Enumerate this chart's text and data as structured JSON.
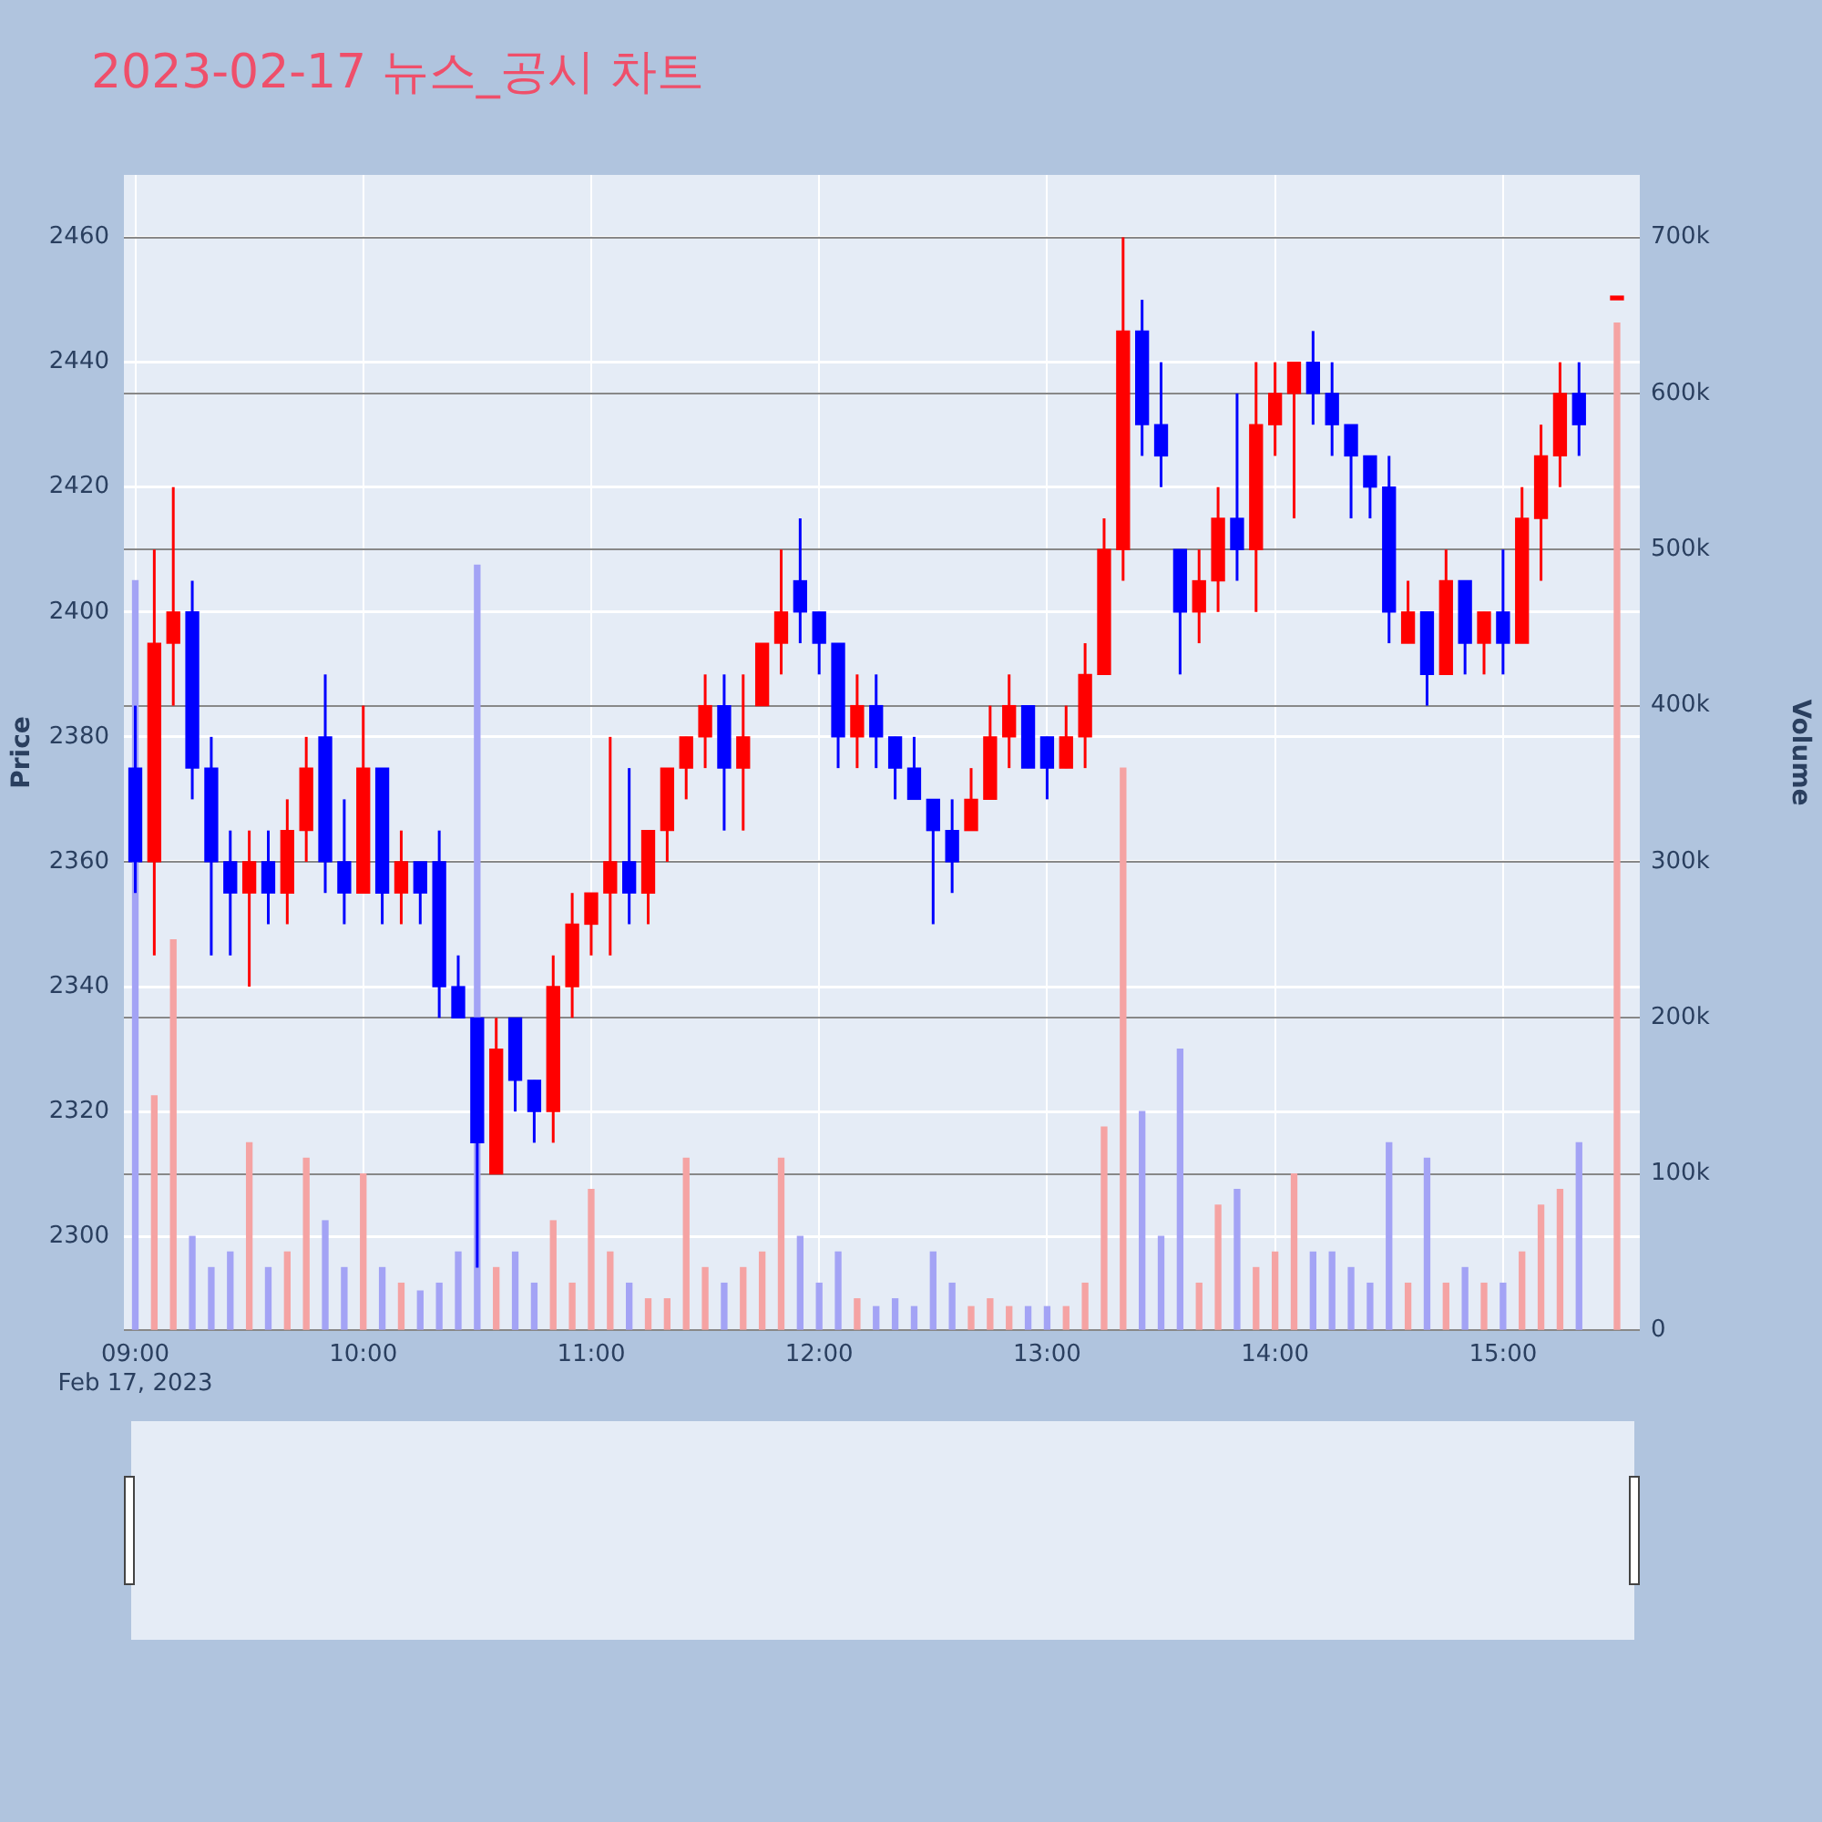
{
  "chart_data": {
    "type": "candlestick",
    "title": "2023-02-17 뉴스_공시 차트",
    "ylabel": "Price",
    "y2label": "Volume",
    "x": [
      "2023-02-17T09:00",
      "2023-02-17T09:05",
      "2023-02-17T09:10",
      "2023-02-17T09:15",
      "2023-02-17T09:20",
      "2023-02-17T09:25",
      "2023-02-17T09:30",
      "2023-02-17T09:35",
      "2023-02-17T09:40",
      "2023-02-17T09:45",
      "2023-02-17T09:50",
      "2023-02-17T09:55",
      "2023-02-17T10:00",
      "2023-02-17T10:05",
      "2023-02-17T10:10",
      "2023-02-17T10:15",
      "2023-02-17T10:20",
      "2023-02-17T10:25",
      "2023-02-17T10:30",
      "2023-02-17T10:35",
      "2023-02-17T10:40",
      "2023-02-17T10:45",
      "2023-02-17T10:50",
      "2023-02-17T10:55",
      "2023-02-17T11:00",
      "2023-02-17T11:05",
      "2023-02-17T11:10",
      "2023-02-17T11:15",
      "2023-02-17T11:20",
      "2023-02-17T11:25",
      "2023-02-17T11:30",
      "2023-02-17T11:35",
      "2023-02-17T11:40",
      "2023-02-17T11:45",
      "2023-02-17T11:50",
      "2023-02-17T11:55",
      "2023-02-17T12:00",
      "2023-02-17T12:05",
      "2023-02-17T12:10",
      "2023-02-17T12:15",
      "2023-02-17T12:20",
      "2023-02-17T12:25",
      "2023-02-17T12:30",
      "2023-02-17T12:35",
      "2023-02-17T12:40",
      "2023-02-17T12:45",
      "2023-02-17T12:50",
      "2023-02-17T12:55",
      "2023-02-17T13:00",
      "2023-02-17T13:05",
      "2023-02-17T13:10",
      "2023-02-17T13:15",
      "2023-02-17T13:20",
      "2023-02-17T13:25",
      "2023-02-17T13:30",
      "2023-02-17T13:35",
      "2023-02-17T13:40",
      "2023-02-17T13:45",
      "2023-02-17T13:50",
      "2023-02-17T13:55",
      "2023-02-17T14:00",
      "2023-02-17T14:05",
      "2023-02-17T14:10",
      "2023-02-17T14:15",
      "2023-02-17T14:20",
      "2023-02-17T14:25",
      "2023-02-17T14:30",
      "2023-02-17T14:35",
      "2023-02-17T14:40",
      "2023-02-17T14:45",
      "2023-02-17T14:50",
      "2023-02-17T14:55",
      "2023-02-17T15:00",
      "2023-02-17T15:05",
      "2023-02-17T15:10",
      "2023-02-17T15:15",
      "2023-02-17T15:20",
      "2023-02-17T15:30"
    ],
    "ohlc": [
      [
        2375,
        2385,
        2355,
        2360
      ],
      [
        2360,
        2410,
        2345,
        2395
      ],
      [
        2395,
        2420,
        2385,
        2400
      ],
      [
        2400,
        2405,
        2370,
        2375
      ],
      [
        2375,
        2380,
        2345,
        2360
      ],
      [
        2360,
        2365,
        2345,
        2355
      ],
      [
        2355,
        2365,
        2340,
        2360
      ],
      [
        2360,
        2365,
        2350,
        2355
      ],
      [
        2355,
        2370,
        2350,
        2365
      ],
      [
        2365,
        2380,
        2360,
        2375
      ],
      [
        2380,
        2390,
        2355,
        2360
      ],
      [
        2360,
        2370,
        2350,
        2355
      ],
      [
        2355,
        2385,
        2355,
        2375
      ],
      [
        2375,
        2375,
        2350,
        2355
      ],
      [
        2355,
        2365,
        2350,
        2360
      ],
      [
        2360,
        2360,
        2350,
        2355
      ],
      [
        2360,
        2365,
        2335,
        2340
      ],
      [
        2340,
        2345,
        2335,
        2335
      ],
      [
        2335,
        2335,
        2295,
        2315
      ],
      [
        2310,
        2335,
        2310,
        2330
      ],
      [
        2335,
        2335,
        2320,
        2325
      ],
      [
        2325,
        2325,
        2315,
        2320
      ],
      [
        2320,
        2345,
        2315,
        2340
      ],
      [
        2340,
        2355,
        2335,
        2350
      ],
      [
        2350,
        2355,
        2345,
        2355
      ],
      [
        2355,
        2380,
        2345,
        2360
      ],
      [
        2360,
        2375,
        2350,
        2355
      ],
      [
        2355,
        2365,
        2350,
        2365
      ],
      [
        2365,
        2375,
        2360,
        2375
      ],
      [
        2375,
        2380,
        2370,
        2380
      ],
      [
        2380,
        2390,
        2375,
        2385
      ],
      [
        2385,
        2390,
        2365,
        2375
      ],
      [
        2375,
        2390,
        2365,
        2380
      ],
      [
        2385,
        2395,
        2385,
        2395
      ],
      [
        2395,
        2410,
        2390,
        2400
      ],
      [
        2405,
        2415,
        2395,
        2400
      ],
      [
        2400,
        2400,
        2390,
        2395
      ],
      [
        2395,
        2395,
        2375,
        2380
      ],
      [
        2380,
        2390,
        2375,
        2385
      ],
      [
        2385,
        2390,
        2375,
        2380
      ],
      [
        2380,
        2380,
        2370,
        2375
      ],
      [
        2375,
        2380,
        2370,
        2370
      ],
      [
        2370,
        2370,
        2350,
        2365
      ],
      [
        2365,
        2370,
        2355,
        2360
      ],
      [
        2365,
        2375,
        2365,
        2370
      ],
      [
        2370,
        2385,
        2370,
        2380
      ],
      [
        2380,
        2390,
        2375,
        2385
      ],
      [
        2385,
        2385,
        2375,
        2375
      ],
      [
        2380,
        2380,
        2370,
        2375
      ],
      [
        2375,
        2385,
        2375,
        2380
      ],
      [
        2380,
        2395,
        2375,
        2390
      ],
      [
        2390,
        2415,
        2390,
        2410
      ],
      [
        2410,
        2460,
        2405,
        2445
      ],
      [
        2445,
        2450,
        2425,
        2430
      ],
      [
        2430,
        2440,
        2420,
        2425
      ],
      [
        2410,
        2410,
        2390,
        2400
      ],
      [
        2400,
        2410,
        2395,
        2405
      ],
      [
        2405,
        2420,
        2400,
        2415
      ],
      [
        2415,
        2435,
        2405,
        2410
      ],
      [
        2410,
        2440,
        2400,
        2430
      ],
      [
        2430,
        2440,
        2425,
        2435
      ],
      [
        2435,
        2440,
        2415,
        2440
      ],
      [
        2440,
        2445,
        2430,
        2435
      ],
      [
        2435,
        2440,
        2425,
        2430
      ],
      [
        2430,
        2430,
        2415,
        2425
      ],
      [
        2425,
        2425,
        2415,
        2420
      ],
      [
        2420,
        2425,
        2395,
        2400
      ],
      [
        2395,
        2405,
        2395,
        2400
      ],
      [
        2400,
        2400,
        2385,
        2390
      ],
      [
        2390,
        2410,
        2390,
        2405
      ],
      [
        2405,
        2405,
        2390,
        2395
      ],
      [
        2395,
        2400,
        2390,
        2400
      ],
      [
        2400,
        2410,
        2390,
        2395
      ],
      [
        2395,
        2420,
        2395,
        2415
      ],
      [
        2415,
        2430,
        2405,
        2425
      ],
      [
        2425,
        2440,
        2420,
        2435
      ],
      [
        2435,
        2440,
        2425,
        2430
      ],
      [
        2450,
        2450,
        2450,
        2450
      ]
    ],
    "colors": [
      "#0000ff",
      "#ff0000",
      "#ff0000",
      "#0000ff",
      "#0000ff",
      "#0000ff",
      "#ff0000",
      "#0000ff",
      "#ff0000",
      "#ff0000",
      "#0000ff",
      "#0000ff",
      "#ff0000",
      "#0000ff",
      "#ff0000",
      "#0000ff",
      "#0000ff",
      "#0000ff",
      "#0000ff",
      "#ff0000",
      "#0000ff",
      "#0000ff",
      "#ff0000",
      "#ff0000",
      "#ff0000",
      "#ff0000",
      "#0000ff",
      "#ff0000",
      "#ff0000",
      "#ff0000",
      "#ff0000",
      "#0000ff",
      "#ff0000",
      "#ff0000",
      "#ff0000",
      "#0000ff",
      "#0000ff",
      "#0000ff",
      "#ff0000",
      "#0000ff",
      "#0000ff",
      "#0000ff",
      "#0000ff",
      "#0000ff",
      "#ff0000",
      "#ff0000",
      "#ff0000",
      "#0000ff",
      "#0000ff",
      "#ff0000",
      "#ff0000",
      "#ff0000",
      "#ff0000",
      "#0000ff",
      "#0000ff",
      "#0000ff",
      "#ff0000",
      "#ff0000",
      "#0000ff",
      "#ff0000",
      "#ff0000",
      "#ff0000",
      "#0000ff",
      "#0000ff",
      "#0000ff",
      "#0000ff",
      "#0000ff",
      "#ff0000",
      "#0000ff",
      "#ff0000",
      "#0000ff",
      "#ff0000",
      "#0000ff",
      "#ff0000",
      "#ff0000",
      "#ff0000",
      "#0000ff",
      "#ff0000"
    ],
    "series": [
      {
        "type": "bar",
        "axis": "y2",
        "values": [
          480000,
          150000,
          250000,
          60000,
          40000,
          50000,
          120000,
          40000,
          50000,
          110000,
          70000,
          40000,
          100000,
          40000,
          30000,
          25000,
          30000,
          50000,
          490000,
          40000,
          50000,
          30000,
          70000,
          30000,
          90000,
          50000,
          30000,
          20000,
          20000,
          110000,
          40000,
          30000,
          40000,
          50000,
          110000,
          60000,
          30000,
          50000,
          20000,
          15000,
          20000,
          15000,
          50000,
          30000,
          15000,
          20000,
          15000,
          15000,
          15000,
          15000,
          30000,
          130000,
          360000,
          140000,
          60000,
          180000,
          30000,
          80000,
          90000,
          40000,
          50000,
          100000,
          50000,
          50000,
          40000,
          30000,
          120000,
          30000,
          110000,
          30000,
          40000,
          30000,
          30000,
          50000,
          80000,
          90000,
          120000,
          645000
        ],
        "colors": [
          "#a3a3f5",
          "#f5a3a3",
          "#f5a3a3",
          "#a3a3f5",
          "#a3a3f5",
          "#a3a3f5",
          "#f5a3a3",
          "#a3a3f5",
          "#f5a3a3",
          "#f5a3a3",
          "#a3a3f5",
          "#a3a3f5",
          "#f5a3a3",
          "#a3a3f5",
          "#f5a3a3",
          "#a3a3f5",
          "#a3a3f5",
          "#a3a3f5",
          "#a3a3f5",
          "#f5a3a3",
          "#a3a3f5",
          "#a3a3f5",
          "#f5a3a3",
          "#f5a3a3",
          "#f5a3a3",
          "#f5a3a3",
          "#a3a3f5",
          "#f5a3a3",
          "#f5a3a3",
          "#f5a3a3",
          "#f5a3a3",
          "#a3a3f5",
          "#f5a3a3",
          "#f5a3a3",
          "#f5a3a3",
          "#a3a3f5",
          "#a3a3f5",
          "#a3a3f5",
          "#f5a3a3",
          "#a3a3f5",
          "#a3a3f5",
          "#a3a3f5",
          "#a3a3f5",
          "#a3a3f5",
          "#f5a3a3",
          "#f5a3a3",
          "#f5a3a3",
          "#a3a3f5",
          "#a3a3f5",
          "#f5a3a3",
          "#f5a3a3",
          "#f5a3a3",
          "#f5a3a3",
          "#a3a3f5",
          "#a3a3f5",
          "#a3a3f5",
          "#f5a3a3",
          "#f5a3a3",
          "#a3a3f5",
          "#f5a3a3",
          "#f5a3a3",
          "#f5a3a3",
          "#a3a3f5",
          "#a3a3f5",
          "#a3a3f5",
          "#a3a3f5",
          "#a3a3f5",
          "#f5a3a3",
          "#a3a3f5",
          "#f5a3a3",
          "#a3a3f5",
          "#f5a3a3",
          "#a3a3f5",
          "#f5a3a3",
          "#f5a3a3",
          "#f5a3a3",
          "#a3a3f5",
          "#f5a3a3"
        ]
      }
    ],
    "xlim": [
      "2023-02-17T08:57",
      "2023-02-17T15:36"
    ],
    "xticks": [
      {
        "value": "2023-02-17T09:00",
        "label": "09:00\nFeb 17, 2023"
      },
      {
        "value": "2023-02-17T10:00",
        "label": "10:00"
      },
      {
        "value": "2023-02-17T11:00",
        "label": "11:00"
      },
      {
        "value": "2023-02-17T12:00",
        "label": "12:00"
      },
      {
        "value": "2023-02-17T13:00",
        "label": "13:00"
      },
      {
        "value": "2023-02-17T14:00",
        "label": "14:00"
      },
      {
        "value": "2023-02-17T15:00",
        "label": "15:00"
      }
    ],
    "ylim": [
      2285,
      2470
    ],
    "yticks": [
      2300,
      2320,
      2340,
      2360,
      2380,
      2400,
      2420,
      2440,
      2460
    ],
    "y2lim": [
      0,
      740000
    ],
    "y2ticks": [
      {
        "value": 0,
        "label": "0"
      },
      {
        "value": 100000,
        "label": "100k"
      },
      {
        "value": 200000,
        "label": "200k"
      },
      {
        "value": 300000,
        "label": "300k"
      },
      {
        "value": 400000,
        "label": "400k"
      },
      {
        "value": 500000,
        "label": "500k"
      },
      {
        "value": 600000,
        "label": "600k"
      },
      {
        "value": 700000,
        "label": "700k"
      }
    ],
    "grid": true
  }
}
